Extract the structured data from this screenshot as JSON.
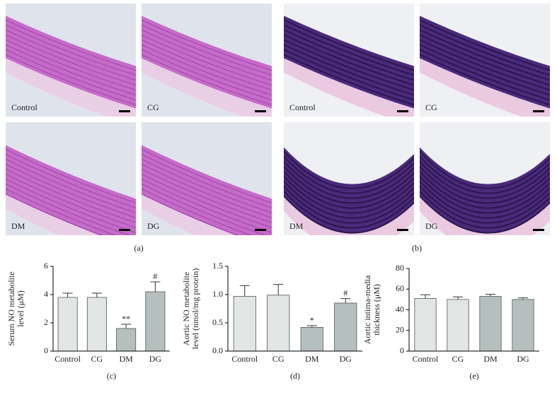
{
  "micrographs": [
    {
      "label": "(a)",
      "images": [
        "Control",
        "CG",
        "DM",
        "DG"
      ]
    },
    {
      "label": "(b)",
      "images": [
        "Control",
        "CG",
        "DM",
        "DG"
      ]
    }
  ],
  "chart_data": [
    {
      "type": "bar",
      "caption": "(c)",
      "ylabel": [
        "Serum NO metabolite",
        "level (μM)"
      ],
      "categories": [
        "Control",
        "CG",
        "DM",
        "DG"
      ],
      "values": [
        3.8,
        3.8,
        1.6,
        4.2
      ],
      "errors": [
        0.3,
        0.3,
        0.3,
        0.7
      ],
      "annotations": [
        null,
        null,
        "**",
        "#"
      ],
      "colors": [
        "#e1e5e4",
        "#e1e5e4",
        "#b5bfbe",
        "#b5bfbe"
      ],
      "ylim": [
        0,
        6
      ],
      "yticks": [
        0,
        2,
        4,
        6
      ]
    },
    {
      "type": "bar",
      "caption": "(d)",
      "ylabel": [
        "Aortic NO metabolite",
        "level (nmol/mg protein)"
      ],
      "categories": [
        "Control",
        "CG",
        "DM",
        "DG"
      ],
      "values": [
        0.97,
        0.99,
        0.42,
        0.85
      ],
      "errors": [
        0.19,
        0.19,
        0.03,
        0.08
      ],
      "annotations": [
        null,
        null,
        "*",
        "#"
      ],
      "colors": [
        "#e1e5e4",
        "#e1e5e4",
        "#b5bfbe",
        "#b5bfbe"
      ],
      "ylim": [
        0,
        1.5
      ],
      "yticks": [
        {
          "value": 0,
          "label": "0.0"
        },
        {
          "value": 0.5,
          "label": "0.5"
        },
        {
          "value": 1,
          "label": "1.0"
        },
        {
          "value": 1.5,
          "label": "1.5"
        }
      ]
    },
    {
      "type": "bar",
      "caption": "(e)",
      "ylabel": [
        "Aortic intima-media",
        "thickness (μM)"
      ],
      "categories": [
        "Control",
        "CG",
        "DM",
        "DG"
      ],
      "values": [
        51,
        50,
        53,
        50
      ],
      "errors": [
        3.5,
        2.5,
        2,
        1.5
      ],
      "annotations": [
        null,
        null,
        null,
        null
      ],
      "colors": [
        "#e1e5e4",
        "#e1e5e4",
        "#b5bfbe",
        "#b5bfbe"
      ],
      "ylim": [
        0,
        80
      ],
      "yticks": [
        0,
        20,
        40,
        60,
        80
      ]
    }
  ]
}
